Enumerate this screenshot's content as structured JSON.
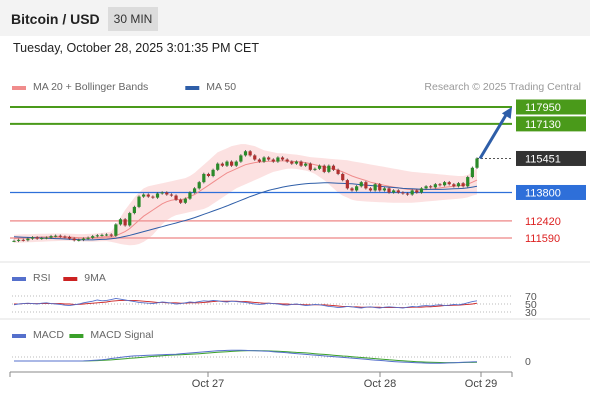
{
  "header": {
    "title": "Bitcoin / USD",
    "timeframe": "30 MIN"
  },
  "timestamp": "Tuesday, October 28, 2025 3:01:35 PM CET",
  "copyright": "Research © 2025 Trading Central",
  "colors": {
    "bull": "#2a8a2a",
    "bear": "#b03030",
    "ma20": "#f08c8c",
    "band_fill": "#fbdcdc",
    "ma50": "#2e5ea8",
    "resistance": "#4a9a1a",
    "pivot": "#2e6fd9",
    "support": "#f09a9a",
    "arrow": "#2e5ea8",
    "rsi": "#5570cc",
    "rsi_ma": "#cc2222",
    "macd": "#5570cc",
    "macd_signal": "#3aa02a"
  },
  "chart_data": [
    {
      "type": "candlestick",
      "legend": [
        {
          "label": "MA 20 + Bollinger Bands",
          "color": "#f08c8c"
        },
        {
          "label": "MA 50",
          "color": "#2e5ea8"
        }
      ],
      "levels": [
        {
          "value": 117950,
          "label": "117950",
          "kind": "resistance"
        },
        {
          "value": 117130,
          "label": "117130",
          "kind": "resistance"
        },
        {
          "value": 115451,
          "label": "115451",
          "kind": "last_price"
        },
        {
          "value": 113800,
          "label": "113800",
          "kind": "pivot"
        },
        {
          "value": 112420,
          "label": "112420",
          "kind": "support"
        },
        {
          "value": 111590,
          "label": "111590",
          "kind": "support"
        }
      ],
      "target_arrow": {
        "from": 115451,
        "to": 117950
      },
      "x_ticks": [
        "Oct 27",
        "Oct 28",
        "Oct 29"
      ],
      "close": [
        111450,
        111500,
        111480,
        111560,
        111620,
        111560,
        111590,
        111610,
        111680,
        111700,
        111660,
        111640,
        111560,
        111480,
        111500,
        111560,
        111600,
        111680,
        111720,
        111740,
        111760,
        111700,
        112250,
        112500,
        112200,
        112800,
        113100,
        113600,
        113700,
        113600,
        113550,
        113750,
        113800,
        113700,
        113650,
        113450,
        113300,
        113500,
        113800,
        114000,
        114300,
        114700,
        114600,
        114900,
        115200,
        115100,
        115300,
        115100,
        115300,
        115600,
        115800,
        115600,
        115400,
        115300,
        115500,
        115400,
        115300,
        115500,
        115400,
        115300,
        115200,
        115300,
        115100,
        115200,
        114900,
        114950,
        115100,
        114800,
        115100,
        114900,
        114700,
        114400,
        114000,
        113900,
        114100,
        114300,
        114000,
        113900,
        114200,
        113900,
        114000,
        113800,
        113900,
        113800,
        113750,
        113700,
        113900,
        113800,
        114000,
        114100,
        114050,
        114200,
        114150,
        114300,
        114200,
        114100,
        114250,
        114100,
        114550,
        115000,
        115451
      ],
      "ma20": [
        111560,
        111580,
        111590,
        111600,
        111620,
        111630,
        111640,
        111640,
        111650,
        111650,
        111650,
        111650,
        111640,
        111620,
        111600,
        111590,
        111590,
        111600,
        111620,
        111640,
        111660,
        111650,
        111700,
        111800,
        111900,
        112050,
        112250,
        112450,
        112650,
        112800,
        112950,
        113100,
        113250,
        113350,
        113420,
        113460,
        113450,
        113500,
        113600,
        113700,
        113850,
        114000,
        114150,
        114300,
        114450,
        114600,
        114750,
        114850,
        114950,
        115050,
        115150,
        115200,
        115250,
        115280,
        115300,
        115320,
        115320,
        115330,
        115340,
        115330,
        115320,
        115300,
        115280,
        115250,
        115200,
        115150,
        115100,
        115050,
        115000,
        114950,
        114880,
        114800,
        114700,
        114600,
        114520,
        114450,
        114380,
        114300,
        114250,
        114200,
        114150,
        114100,
        114060,
        114020,
        113990,
        113960,
        113940,
        113930,
        113930,
        113940,
        113960,
        113990,
        114020,
        114050,
        114080,
        114100,
        114130,
        114150,
        114200,
        114300,
        114400
      ],
      "upper_band": [
        111750,
        111760,
        111770,
        111770,
        111780,
        111790,
        111800,
        111800,
        111810,
        111810,
        111810,
        111810,
        111800,
        111790,
        111780,
        111780,
        111790,
        111800,
        111820,
        111840,
        111860,
        111900,
        112200,
        112600,
        112950,
        113250,
        113550,
        113800,
        114000,
        114100,
        114150,
        114200,
        114250,
        114300,
        114350,
        114400,
        114450,
        114500,
        114600,
        114750,
        114950,
        115150,
        115350,
        115550,
        115750,
        115850,
        115950,
        116050,
        116100,
        116150,
        116150,
        116100,
        116050,
        115950,
        115850,
        115800,
        115750,
        115700,
        115700,
        115680,
        115660,
        115640,
        115600,
        115560,
        115520,
        115500,
        115480,
        115460,
        115440,
        115420,
        115400,
        115380,
        115360,
        115320,
        115280,
        115240,
        115200,
        115160,
        115120,
        115080,
        115040,
        115000,
        114960,
        114920,
        114880,
        114840,
        114800,
        114780,
        114760,
        114740,
        114720,
        114700,
        114680,
        114660,
        114640,
        114620,
        114600,
        114600,
        114650,
        114800,
        115000
      ],
      "lower_band": [
        111350,
        111360,
        111370,
        111380,
        111390,
        111400,
        111410,
        111420,
        111430,
        111440,
        111450,
        111460,
        111460,
        111450,
        111430,
        111420,
        111410,
        111410,
        111420,
        111430,
        111440,
        111400,
        111350,
        111300,
        111260,
        111240,
        111250,
        111300,
        111400,
        111550,
        111750,
        112000,
        112250,
        112450,
        112600,
        112700,
        112750,
        112800,
        112850,
        112900,
        112950,
        113000,
        113100,
        113250,
        113400,
        113550,
        113700,
        113850,
        114000,
        114100,
        114200,
        114300,
        114400,
        114500,
        114600,
        114700,
        114800,
        114850,
        114900,
        114950,
        114960,
        114940,
        114900,
        114860,
        114800,
        114700,
        114550,
        114400,
        114200,
        114000,
        113800,
        113650,
        113550,
        113450,
        113400,
        113380,
        113360,
        113350,
        113340,
        113330,
        113320,
        113310,
        113300,
        113300,
        113300,
        113300,
        113300,
        113320,
        113340,
        113360,
        113380,
        113400,
        113420,
        113440,
        113460,
        113480,
        113500,
        113520,
        113560,
        113650,
        113700
      ],
      "ma50": [
        111650,
        111640,
        111630,
        111620,
        111610,
        111600,
        111590,
        111580,
        111570,
        111560,
        111550,
        111540,
        111530,
        111520,
        111510,
        111500,
        111500,
        111500,
        111510,
        111520,
        111530,
        111550,
        111580,
        111620,
        111670,
        111720,
        111780,
        111840,
        111900,
        111960,
        112020,
        112080,
        112140,
        112200,
        112260,
        112320,
        112380,
        112440,
        112510,
        112580,
        112660,
        112740,
        112820,
        112900,
        112980,
        113060,
        113150,
        113240,
        113330,
        113420,
        113510,
        113600,
        113680,
        113760,
        113830,
        113900,
        113960,
        114010,
        114060,
        114100,
        114140,
        114170,
        114200,
        114220,
        114240,
        114250,
        114260,
        114270,
        114270,
        114260,
        114250,
        114240,
        114230,
        114220,
        114200,
        114180,
        114160,
        114140,
        114120,
        114100,
        114080,
        114060,
        114040,
        114020,
        114000,
        113990,
        113980,
        113970,
        113960,
        113950,
        113950,
        113950,
        113950,
        113960,
        113970,
        113980,
        113990,
        114000,
        114020,
        114060,
        114100
      ]
    },
    {
      "type": "line",
      "legend": [
        {
          "label": "RSI",
          "color": "#5570cc"
        },
        {
          "label": "9MA",
          "color": "#cc2222"
        }
      ],
      "y_ticks": [
        70,
        50,
        30
      ],
      "rsi": [
        48,
        50,
        51,
        52,
        51,
        50,
        52,
        53,
        51,
        50,
        49,
        47,
        46,
        48,
        50,
        53,
        55,
        57,
        60,
        58,
        59,
        61,
        64,
        62,
        60,
        58,
        56,
        54,
        53,
        52,
        51,
        53,
        55,
        54,
        52,
        50,
        51,
        53,
        55,
        54,
        56,
        58,
        57,
        59,
        58,
        56,
        55,
        57,
        56,
        55,
        54,
        52,
        50,
        49,
        50,
        52,
        51,
        50,
        48,
        47,
        49,
        50,
        48,
        46,
        47,
        49,
        48,
        46,
        44,
        43,
        41,
        42,
        44,
        43,
        41,
        40,
        42,
        43,
        41,
        40,
        42,
        43,
        42,
        41,
        40,
        42,
        44,
        43,
        45,
        46,
        45,
        47,
        48,
        46,
        47,
        49,
        48,
        50,
        53,
        56,
        58
      ],
      "rsi_9ma": [
        50,
        50,
        51,
        51,
        51,
        51,
        51,
        51,
        51,
        51,
        51,
        50,
        50,
        49,
        49,
        50,
        51,
        52,
        53,
        54,
        55,
        57,
        58,
        59,
        59,
        59,
        59,
        58,
        57,
        56,
        55,
        54,
        54,
        53,
        53,
        53,
        52,
        52,
        53,
        53,
        53,
        54,
        55,
        56,
        57,
        57,
        57,
        57,
        57,
        56,
        56,
        55,
        54,
        53,
        52,
        52,
        51,
        51,
        50,
        50,
        49,
        49,
        49,
        48,
        48,
        48,
        48,
        48,
        47,
        46,
        45,
        44,
        44,
        43,
        43,
        42,
        42,
        42,
        42,
        42,
        41,
        41,
        41,
        41,
        41,
        41,
        42,
        42,
        42,
        43,
        43,
        44,
        45,
        46,
        46,
        47,
        47,
        48,
        49,
        50,
        52
      ]
    },
    {
      "type": "line",
      "legend": [
        {
          "label": "MACD",
          "color": "#5570cc"
        },
        {
          "label": "MACD Signal",
          "color": "#3aa02a"
        }
      ],
      "y_ticks": [
        0
      ],
      "macd": [
        0,
        0,
        0,
        0,
        0,
        0,
        0,
        0,
        0,
        0,
        0,
        0,
        0,
        0,
        0,
        5,
        15,
        30,
        50,
        70,
        95,
        130,
        160,
        190,
        220,
        250,
        270,
        280,
        290,
        300,
        310,
        320,
        330,
        340,
        350,
        360,
        380,
        400,
        420,
        440,
        460,
        480,
        500,
        520,
        540,
        550,
        560,
        565,
        570,
        570,
        560,
        550,
        540,
        530,
        520,
        510,
        490,
        470,
        450,
        430,
        410,
        390,
        370,
        350,
        330,
        310,
        290,
        270,
        250,
        230,
        210,
        190,
        170,
        150,
        130,
        110,
        90,
        70,
        50,
        30,
        10,
        -10,
        -30,
        -50,
        -60,
        -70,
        -80,
        -90,
        -100,
        -110,
        -120,
        -120,
        -115,
        -110,
        -100,
        -90,
        -80,
        -70,
        -60,
        -50,
        -40
      ],
      "macd_signal": [
        0,
        0,
        0,
        0,
        0,
        0,
        0,
        0,
        0,
        0,
        0,
        0,
        0,
        0,
        0,
        0,
        5,
        10,
        20,
        30,
        45,
        60,
        80,
        100,
        120,
        140,
        160,
        180,
        200,
        220,
        240,
        260,
        280,
        295,
        310,
        320,
        330,
        340,
        355,
        370,
        385,
        400,
        420,
        440,
        460,
        475,
        490,
        505,
        520,
        530,
        540,
        545,
        545,
        540,
        535,
        530,
        520,
        510,
        500,
        485,
        470,
        455,
        440,
        425,
        405,
        385,
        365,
        345,
        325,
        305,
        285,
        265,
        245,
        225,
        205,
        185,
        165,
        145,
        125,
        105,
        85,
        65,
        45,
        25,
        10,
        -5,
        -20,
        -35,
        -50,
        -60,
        -70,
        -75,
        -80,
        -82,
        -84,
        -84,
        -82,
        -80,
        -76,
        -72,
        -68
      ]
    }
  ]
}
